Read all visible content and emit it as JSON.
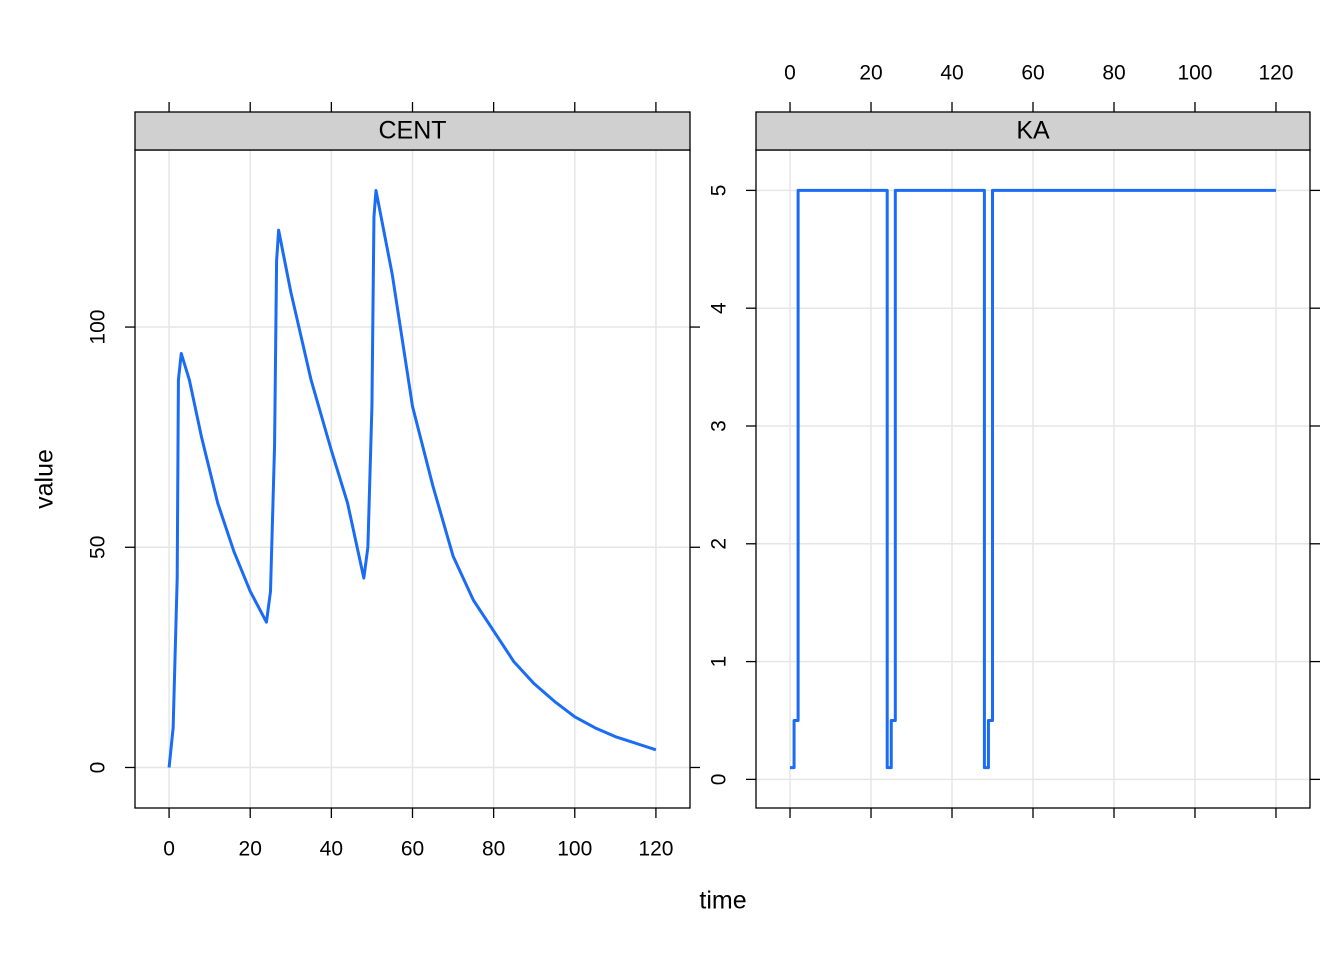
{
  "xlabel": "time",
  "ylabel": "value",
  "chart_data": [
    {
      "type": "line",
      "title": "CENT",
      "x": [
        0,
        1,
        2,
        2.3,
        3,
        5,
        8,
        12,
        16,
        20,
        24,
        25,
        26,
        26.5,
        27,
        30,
        35,
        40,
        44,
        48,
        49,
        50,
        50.5,
        51,
        55,
        60,
        65,
        70,
        75,
        80,
        85,
        90,
        95,
        100,
        105,
        110,
        115,
        120
      ],
      "series": [
        {
          "color": "#1a6cf5",
          "values": [
            0,
            9,
            43,
            88,
            94,
            88,
            75,
            60,
            49,
            40,
            33,
            40,
            73,
            115,
            122,
            108,
            88,
            72,
            60,
            43,
            50,
            82,
            125,
            131,
            112,
            82,
            64,
            48,
            38,
            31,
            24,
            19,
            15,
            11.5,
            9,
            7,
            5.5,
            4
          ]
        }
      ],
      "xlim": [
        -8.4,
        128.4
      ],
      "xticks": [
        0,
        20,
        40,
        60,
        80,
        100,
        120
      ],
      "ylim": [
        -9.2,
        140.2
      ],
      "yticks": [
        0,
        50,
        100
      ],
      "xtick_side": "bottom",
      "grid": true
    },
    {
      "type": "line",
      "title": "KA",
      "x": [
        0,
        1,
        1,
        2,
        2,
        24,
        24,
        25,
        25,
        26,
        26,
        48,
        48,
        49,
        49,
        50,
        50,
        120
      ],
      "series": [
        {
          "color": "#1a6cf5",
          "values": [
            0.1,
            0.1,
            0.5,
            0.5,
            5,
            5,
            0.1,
            0.1,
            0.5,
            0.5,
            5,
            5,
            0.1,
            0.1,
            0.5,
            0.5,
            5,
            5
          ]
        }
      ],
      "xlim": [
        -8.4,
        128.4
      ],
      "xticks": [
        0,
        20,
        40,
        60,
        80,
        100,
        120
      ],
      "ylim": [
        -0.243,
        5.343
      ],
      "yticks": [
        0,
        1,
        2,
        3,
        4,
        5
      ],
      "xtick_side": "top",
      "grid": true
    }
  ]
}
